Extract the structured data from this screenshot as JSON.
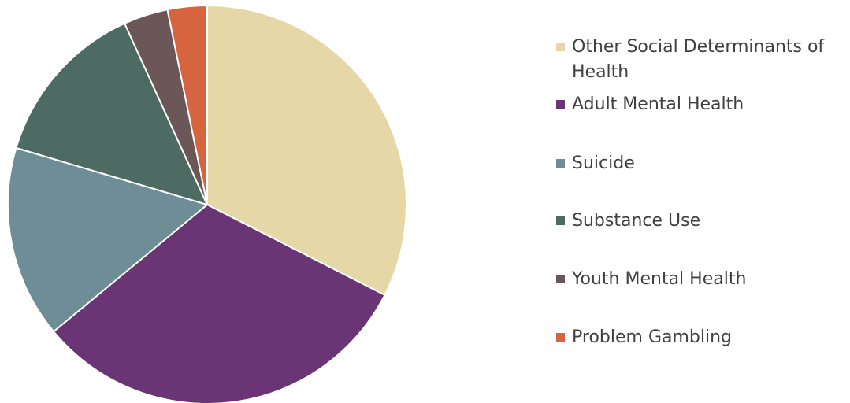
{
  "chart_data": {
    "type": "pie",
    "title": "",
    "legend_position": "right",
    "slices": [
      {
        "name": "Other Social Determinants of Health",
        "value": 32.5,
        "color": "#E6D8A6"
      },
      {
        "name": "Adult Mental Health",
        "value": 31.5,
        "color": "#6A3574"
      },
      {
        "name": "Suicide",
        "value": 15.6,
        "color": "#6E8D97"
      },
      {
        "name": "Substance Use",
        "value": 13.6,
        "color": "#4E6B63"
      },
      {
        "name": "Youth Mental Health",
        "value": 3.6,
        "color": "#6B5658"
      },
      {
        "name": "Problem Gambling",
        "value": 3.2,
        "color": "#D5643F"
      }
    ]
  }
}
